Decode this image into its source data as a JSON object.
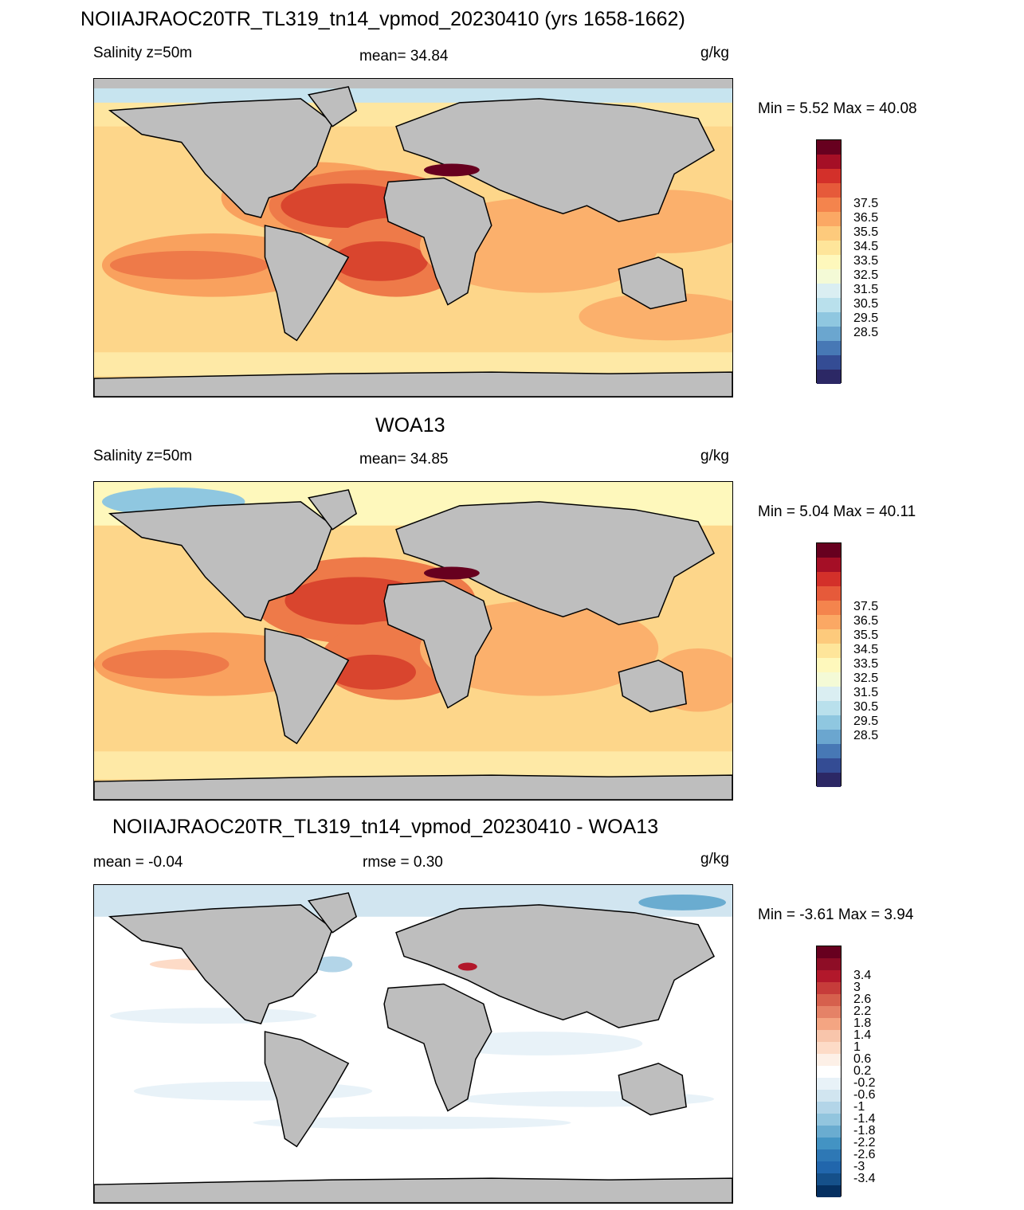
{
  "panel1": {
    "title": "NOIIAJRAOC20TR_TL319_tn14_vpmod_20230410 (yrs 1658-1662)",
    "left_label": "Salinity z=50m",
    "center_label": "mean=  34.84",
    "units": "g/kg",
    "minmax": "Min =   5.52 Max =  40.08"
  },
  "panel2": {
    "title": "WOA13",
    "left_label": "Salinity z=50m",
    "center_label": "mean=  34.85",
    "units": "g/kg",
    "minmax": "Min =   5.04 Max =  40.11"
  },
  "panel3": {
    "title": "NOIIAJRAOC20TR_TL319_tn14_vpmod_20230410 - WOA13",
    "left_label": "mean =  -0.04",
    "center_label": "rmse =   0.30",
    "units": "g/kg",
    "minmax": "Min = -3.61 Max =   3.94"
  },
  "colorbar_salinity": {
    "colors": [
      "#67001f",
      "#a50f26",
      "#d3302a",
      "#e65a3a",
      "#f4844d",
      "#fba864",
      "#fdca7c",
      "#fee59a",
      "#fef8bc",
      "#f4fad6",
      "#daeef2",
      "#b9e0ec",
      "#8fc7e0",
      "#6ba6cf",
      "#4778b5",
      "#344c94",
      "#2c2865"
    ],
    "labels": [
      "37.5",
      "36.5",
      "35.5",
      "34.5",
      "33.5",
      "32.5",
      "31.5",
      "30.5",
      "29.5",
      "28.5"
    ]
  },
  "colorbar_diff": {
    "colors": [
      "#67001f",
      "#8e0d26",
      "#b2182b",
      "#c63c3a",
      "#d6604d",
      "#e58267",
      "#f4a582",
      "#f8c5ab",
      "#fddbc7",
      "#fdf0e7",
      "#ffffff",
      "#e8f2f8",
      "#d1e5f0",
      "#b3d5e8",
      "#92c5de",
      "#6aacd0",
      "#4393c3",
      "#2e78b5",
      "#2166ac",
      "#15508a",
      "#053061"
    ],
    "labels": [
      "3.4",
      "3",
      "2.6",
      "2.2",
      "1.8",
      "1.4",
      "1",
      "0.6",
      "0.2",
      "-0.2",
      "-0.6",
      "-1",
      "-1.4",
      "-1.8",
      "-2.2",
      "-2.6",
      "-3",
      "-3.4"
    ]
  },
  "colors": {
    "land": "#bebebe",
    "coast": "#000000"
  }
}
